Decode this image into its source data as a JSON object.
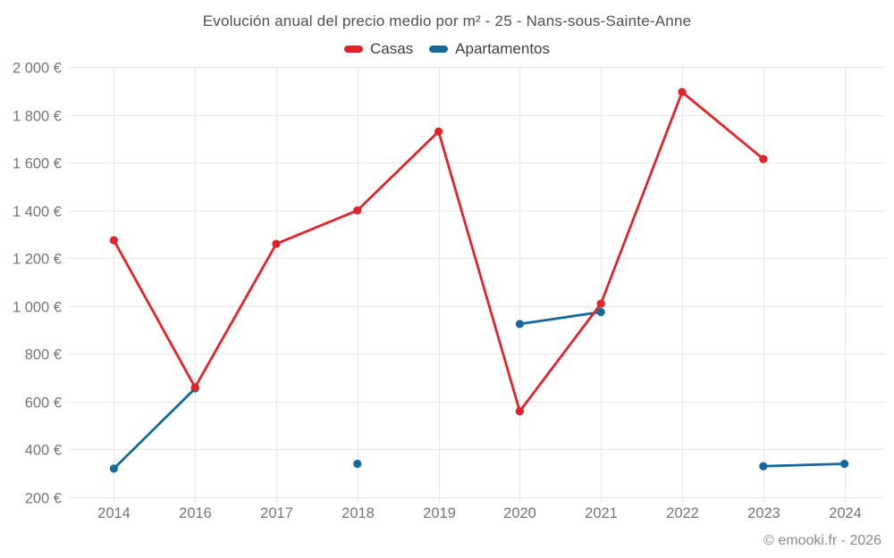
{
  "page": {
    "title": "Evolución anual del precio medio por m² - 25 - Nans-sous-Sainte-Anne",
    "footer": "© emooki.fr - 2026"
  },
  "legend": [
    {
      "label": "Casas",
      "color": "#e2232a"
    },
    {
      "label": "Apartamentos",
      "color": "#17699b"
    }
  ],
  "chart_data": {
    "type": "line",
    "title": "Evolución anual del precio medio por m² - 25 - Nans-sous-Sainte-Anne",
    "categories": [
      "2014",
      "2016",
      "2017",
      "2018",
      "2019",
      "2020",
      "2021",
      "2022",
      "2023",
      "2024"
    ],
    "series": [
      {
        "name": "Casas",
        "color": "#e2232a",
        "values": [
          1275,
          660,
          1260,
          1400,
          1730,
          560,
          1010,
          1895,
          1615,
          null
        ]
      },
      {
        "name": "Apartamentos",
        "color": "#17699b",
        "values": [
          320,
          655,
          null,
          340,
          null,
          925,
          975,
          null,
          330,
          340
        ]
      }
    ],
    "xlabel": "",
    "ylabel": "",
    "y_min": 200,
    "y_max": 2000,
    "y_step": 200,
    "y_tick_labels": [
      "200 €",
      "400 €",
      "600 €",
      "800 €",
      "1 000 €",
      "1 200 €",
      "1 400 €",
      "1 600 €",
      "1 800 €",
      "2 000 €"
    ],
    "currency": "€",
    "grid": true,
    "legend_position": "top",
    "missing_years_note": "2015 absent from axis; Casas has no 2024 value; Apartamentos has gaps at 2017, 2019, 2022"
  }
}
